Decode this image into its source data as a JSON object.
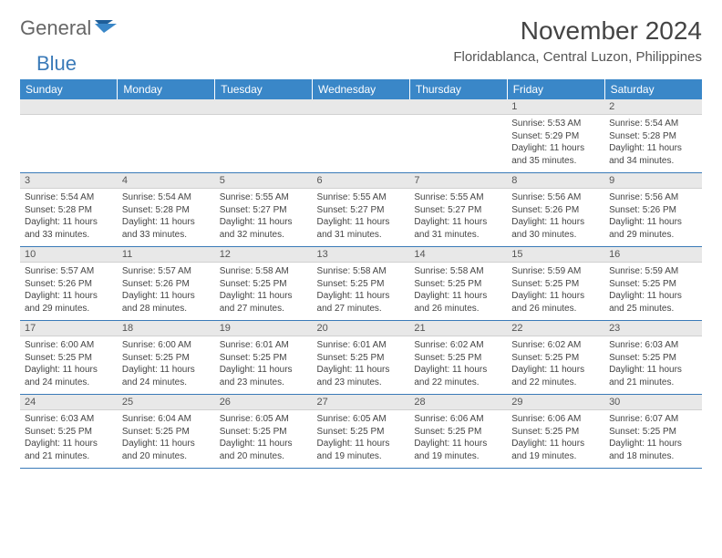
{
  "logo": {
    "general": "General",
    "blue": "Blue"
  },
  "title": "November 2024",
  "location": "Floridablanca, Central Luzon, Philippines",
  "colors": {
    "header_bg": "#3a87c8",
    "header_text": "#ffffff",
    "band_bg": "#e8e8e8",
    "rule": "#3a7ab8",
    "body_text": "#444444",
    "logo_blue": "#3a7ab8",
    "logo_gray": "#666666"
  },
  "day_names": [
    "Sunday",
    "Monday",
    "Tuesday",
    "Wednesday",
    "Thursday",
    "Friday",
    "Saturday"
  ],
  "weeks": [
    [
      {
        "n": "",
        "sr": "",
        "ss": "",
        "dl": ""
      },
      {
        "n": "",
        "sr": "",
        "ss": "",
        "dl": ""
      },
      {
        "n": "",
        "sr": "",
        "ss": "",
        "dl": ""
      },
      {
        "n": "",
        "sr": "",
        "ss": "",
        "dl": ""
      },
      {
        "n": "",
        "sr": "",
        "ss": "",
        "dl": ""
      },
      {
        "n": "1",
        "sr": "Sunrise: 5:53 AM",
        "ss": "Sunset: 5:29 PM",
        "dl": "Daylight: 11 hours and 35 minutes."
      },
      {
        "n": "2",
        "sr": "Sunrise: 5:54 AM",
        "ss": "Sunset: 5:28 PM",
        "dl": "Daylight: 11 hours and 34 minutes."
      }
    ],
    [
      {
        "n": "3",
        "sr": "Sunrise: 5:54 AM",
        "ss": "Sunset: 5:28 PM",
        "dl": "Daylight: 11 hours and 33 minutes."
      },
      {
        "n": "4",
        "sr": "Sunrise: 5:54 AM",
        "ss": "Sunset: 5:28 PM",
        "dl": "Daylight: 11 hours and 33 minutes."
      },
      {
        "n": "5",
        "sr": "Sunrise: 5:55 AM",
        "ss": "Sunset: 5:27 PM",
        "dl": "Daylight: 11 hours and 32 minutes."
      },
      {
        "n": "6",
        "sr": "Sunrise: 5:55 AM",
        "ss": "Sunset: 5:27 PM",
        "dl": "Daylight: 11 hours and 31 minutes."
      },
      {
        "n": "7",
        "sr": "Sunrise: 5:55 AM",
        "ss": "Sunset: 5:27 PM",
        "dl": "Daylight: 11 hours and 31 minutes."
      },
      {
        "n": "8",
        "sr": "Sunrise: 5:56 AM",
        "ss": "Sunset: 5:26 PM",
        "dl": "Daylight: 11 hours and 30 minutes."
      },
      {
        "n": "9",
        "sr": "Sunrise: 5:56 AM",
        "ss": "Sunset: 5:26 PM",
        "dl": "Daylight: 11 hours and 29 minutes."
      }
    ],
    [
      {
        "n": "10",
        "sr": "Sunrise: 5:57 AM",
        "ss": "Sunset: 5:26 PM",
        "dl": "Daylight: 11 hours and 29 minutes."
      },
      {
        "n": "11",
        "sr": "Sunrise: 5:57 AM",
        "ss": "Sunset: 5:26 PM",
        "dl": "Daylight: 11 hours and 28 minutes."
      },
      {
        "n": "12",
        "sr": "Sunrise: 5:58 AM",
        "ss": "Sunset: 5:25 PM",
        "dl": "Daylight: 11 hours and 27 minutes."
      },
      {
        "n": "13",
        "sr": "Sunrise: 5:58 AM",
        "ss": "Sunset: 5:25 PM",
        "dl": "Daylight: 11 hours and 27 minutes."
      },
      {
        "n": "14",
        "sr": "Sunrise: 5:58 AM",
        "ss": "Sunset: 5:25 PM",
        "dl": "Daylight: 11 hours and 26 minutes."
      },
      {
        "n": "15",
        "sr": "Sunrise: 5:59 AM",
        "ss": "Sunset: 5:25 PM",
        "dl": "Daylight: 11 hours and 26 minutes."
      },
      {
        "n": "16",
        "sr": "Sunrise: 5:59 AM",
        "ss": "Sunset: 5:25 PM",
        "dl": "Daylight: 11 hours and 25 minutes."
      }
    ],
    [
      {
        "n": "17",
        "sr": "Sunrise: 6:00 AM",
        "ss": "Sunset: 5:25 PM",
        "dl": "Daylight: 11 hours and 24 minutes."
      },
      {
        "n": "18",
        "sr": "Sunrise: 6:00 AM",
        "ss": "Sunset: 5:25 PM",
        "dl": "Daylight: 11 hours and 24 minutes."
      },
      {
        "n": "19",
        "sr": "Sunrise: 6:01 AM",
        "ss": "Sunset: 5:25 PM",
        "dl": "Daylight: 11 hours and 23 minutes."
      },
      {
        "n": "20",
        "sr": "Sunrise: 6:01 AM",
        "ss": "Sunset: 5:25 PM",
        "dl": "Daylight: 11 hours and 23 minutes."
      },
      {
        "n": "21",
        "sr": "Sunrise: 6:02 AM",
        "ss": "Sunset: 5:25 PM",
        "dl": "Daylight: 11 hours and 22 minutes."
      },
      {
        "n": "22",
        "sr": "Sunrise: 6:02 AM",
        "ss": "Sunset: 5:25 PM",
        "dl": "Daylight: 11 hours and 22 minutes."
      },
      {
        "n": "23",
        "sr": "Sunrise: 6:03 AM",
        "ss": "Sunset: 5:25 PM",
        "dl": "Daylight: 11 hours and 21 minutes."
      }
    ],
    [
      {
        "n": "24",
        "sr": "Sunrise: 6:03 AM",
        "ss": "Sunset: 5:25 PM",
        "dl": "Daylight: 11 hours and 21 minutes."
      },
      {
        "n": "25",
        "sr": "Sunrise: 6:04 AM",
        "ss": "Sunset: 5:25 PM",
        "dl": "Daylight: 11 hours and 20 minutes."
      },
      {
        "n": "26",
        "sr": "Sunrise: 6:05 AM",
        "ss": "Sunset: 5:25 PM",
        "dl": "Daylight: 11 hours and 20 minutes."
      },
      {
        "n": "27",
        "sr": "Sunrise: 6:05 AM",
        "ss": "Sunset: 5:25 PM",
        "dl": "Daylight: 11 hours and 19 minutes."
      },
      {
        "n": "28",
        "sr": "Sunrise: 6:06 AM",
        "ss": "Sunset: 5:25 PM",
        "dl": "Daylight: 11 hours and 19 minutes."
      },
      {
        "n": "29",
        "sr": "Sunrise: 6:06 AM",
        "ss": "Sunset: 5:25 PM",
        "dl": "Daylight: 11 hours and 19 minutes."
      },
      {
        "n": "30",
        "sr": "Sunrise: 6:07 AM",
        "ss": "Sunset: 5:25 PM",
        "dl": "Daylight: 11 hours and 18 minutes."
      }
    ]
  ]
}
